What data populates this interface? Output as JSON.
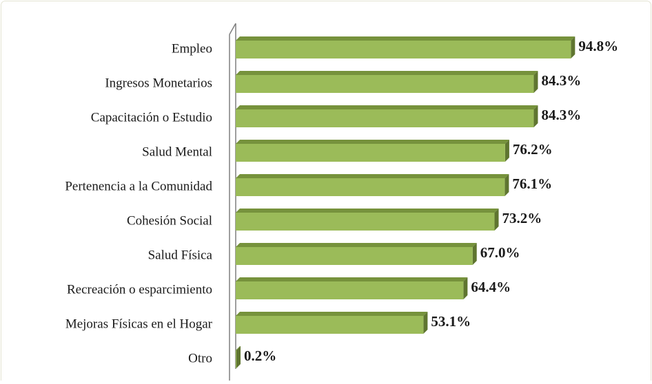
{
  "chart_data": {
    "type": "bar",
    "orientation": "horizontal",
    "categories": [
      "Empleo",
      "Ingresos Monetarios",
      "Capacitación o Estudio",
      "Salud Mental",
      "Pertenencia a la Comunidad",
      "Cohesión Social",
      "Salud Física",
      "Recreación o esparcimiento",
      "Mejoras Físicas en el Hogar",
      "Otro"
    ],
    "values": [
      94.8,
      84.3,
      84.3,
      76.2,
      76.1,
      73.2,
      67.0,
      64.4,
      53.1,
      0.2
    ],
    "value_labels": [
      "94.8%",
      "84.3%",
      "84.3%",
      "76.2%",
      "76.1%",
      "73.2%",
      "67.0%",
      "64.4%",
      "53.1%",
      "0.2%"
    ],
    "color": "#9bbb59"
  }
}
